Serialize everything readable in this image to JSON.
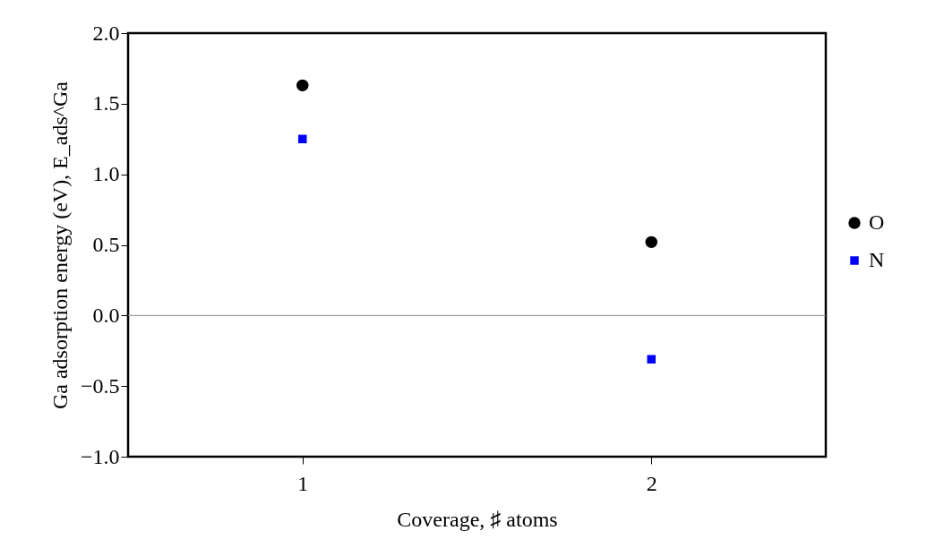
{
  "chart_data": {
    "type": "scatter",
    "xlabel": "Coverage, ♯ atoms",
    "ylabel": "Ga adsorption energy (eV),  E_ads^Ga",
    "x": [
      1,
      2
    ],
    "series": [
      {
        "name": "O",
        "color": "#000000",
        "marker": "circle",
        "values": [
          1.63,
          0.52
        ]
      },
      {
        "name": "N",
        "color": "#0000ff",
        "marker": "square",
        "values": [
          1.25,
          -0.31
        ]
      }
    ],
    "xlim": [
      0.5,
      2.5
    ],
    "xticks": [
      1,
      2
    ],
    "ylim": [
      -1.0,
      2.0
    ],
    "yticks": [
      {
        "value": -1,
        "label": "−1.0"
      },
      {
        "value": -0.5,
        "label": "−0.5"
      },
      {
        "value": 0,
        "label": "0.0"
      },
      {
        "value": 0.5,
        "label": "0.5"
      },
      {
        "value": 1,
        "label": "1.0"
      },
      {
        "value": 1.5,
        "label": "1.5"
      },
      {
        "value": 2,
        "label": "2.0"
      }
    ],
    "ref_lines": [
      {
        "axis": "y",
        "value": 0,
        "color": "#888888"
      }
    ],
    "grid": false,
    "legend": "right"
  }
}
